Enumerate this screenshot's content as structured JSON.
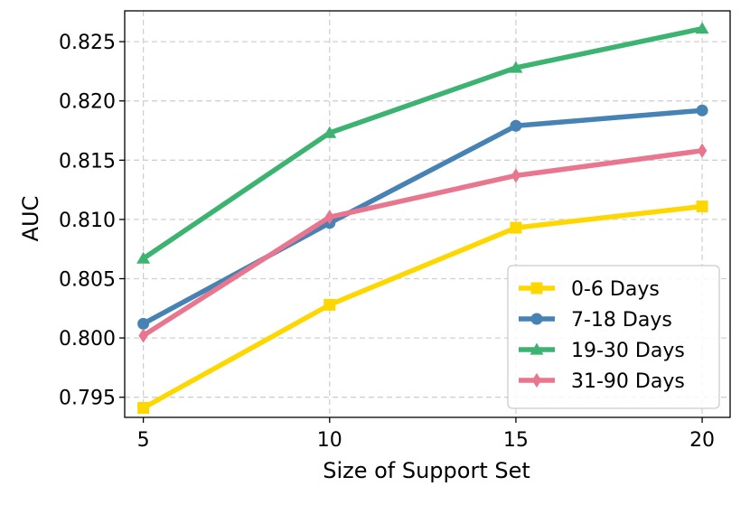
{
  "chart_data": {
    "type": "line",
    "title": "",
    "xlabel": "Size of Support Set",
    "ylabel": "AUC",
    "x": [
      5,
      10,
      15,
      20
    ],
    "xticks": [
      "5",
      "10",
      "15",
      "20"
    ],
    "yticks": [
      "0.795",
      "0.800",
      "0.805",
      "0.810",
      "0.815",
      "0.820",
      "0.825"
    ],
    "ylim": [
      0.7933,
      0.8276
    ],
    "grid": true,
    "legend_position": "lower-right",
    "series": [
      {
        "name": "0-6 Days",
        "color": "#FFD700",
        "marker": "square",
        "values": [
          0.7941,
          0.8028,
          0.8093,
          0.8111
        ]
      },
      {
        "name": "7-18 Days",
        "color": "#4682B4",
        "marker": "circle",
        "values": [
          0.8012,
          0.8097,
          0.8179,
          0.8192
        ]
      },
      {
        "name": "19-30 Days",
        "color": "#3CB371",
        "marker": "triangle",
        "values": [
          0.8067,
          0.8173,
          0.8228,
          0.8261
        ]
      },
      {
        "name": "31-90 Days",
        "color": "#E8768E",
        "marker": "diamond",
        "values": [
          0.8002,
          0.8102,
          0.8137,
          0.8158
        ]
      }
    ]
  }
}
